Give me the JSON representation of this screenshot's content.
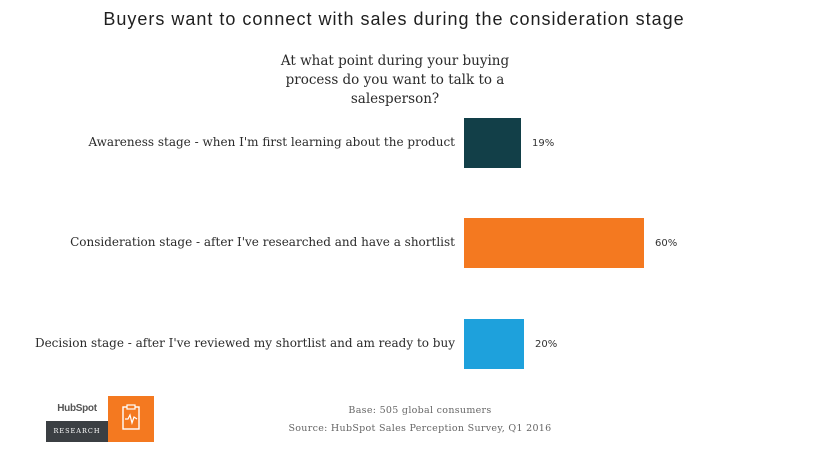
{
  "chart_data": {
    "type": "bar",
    "orientation": "horizontal",
    "title": "Buyers want to connect with sales during the consideration stage",
    "subtitle_line1": "At what point during your buying",
    "subtitle_line2": "process do you want to talk to a salesperson?",
    "categories": [
      "Awareness stage - when I'm first learning about the product",
      "Consideration stage - after I've researched and have a shortlist",
      "Decision stage - after I've reviewed my shortlist and am ready to buy"
    ],
    "values": [
      19,
      60,
      20
    ],
    "value_labels": [
      "19%",
      "60%",
      "20%"
    ],
    "colors": [
      "#123f48",
      "#f47920",
      "#1ea1dc"
    ],
    "xlim": [
      0,
      100
    ],
    "grid": false,
    "legend": false
  },
  "footer": {
    "base": "Base: 505 global consumers",
    "source": "Source: HubSpot Sales Perception Survey, Q1 2016"
  },
  "logo": {
    "brand": "HubSpot",
    "tag": "RESEARCH",
    "icon": "clipboard-pulse-icon"
  }
}
